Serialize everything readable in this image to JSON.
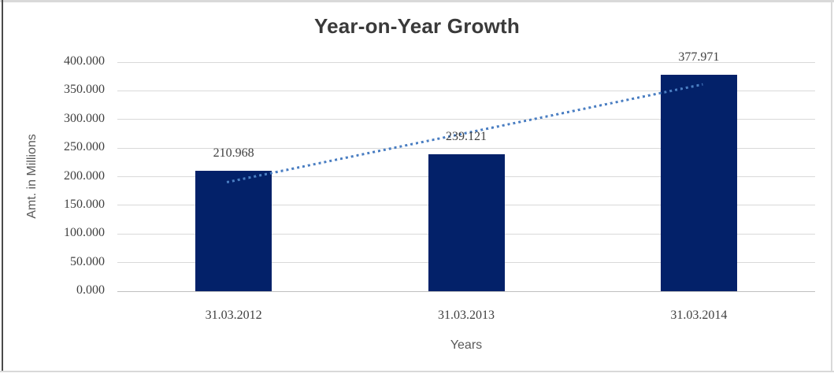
{
  "chart_data": {
    "type": "bar",
    "title": "Year-on-Year Growth",
    "categories": [
      "31.03.2012",
      "31.03.2013",
      "31.03.2014"
    ],
    "values": [
      210968,
      239121,
      377971
    ],
    "value_labels": [
      "210.968",
      "239.121",
      "377.971"
    ],
    "xlabel": "Years",
    "ylabel": "Amt. in Millions",
    "ylim": [
      0,
      400000
    ],
    "ytick_step": 50000,
    "ytick_labels": [
      "0.000",
      "50.000",
      "100.000",
      "150.000",
      "200.000",
      "250.000",
      "300.000",
      "350.000",
      "400.000"
    ],
    "grid": true,
    "legend": "none",
    "bar_color": "#032169",
    "trendline": {
      "type": "linear",
      "style": "dotted",
      "color": "#4a7ec2"
    },
    "gridline_color": "#d9d9d9",
    "axis_line_color": "#bfbfbf",
    "tick_text_color": "#3f3f3f",
    "axis_title_color": "#595959"
  }
}
